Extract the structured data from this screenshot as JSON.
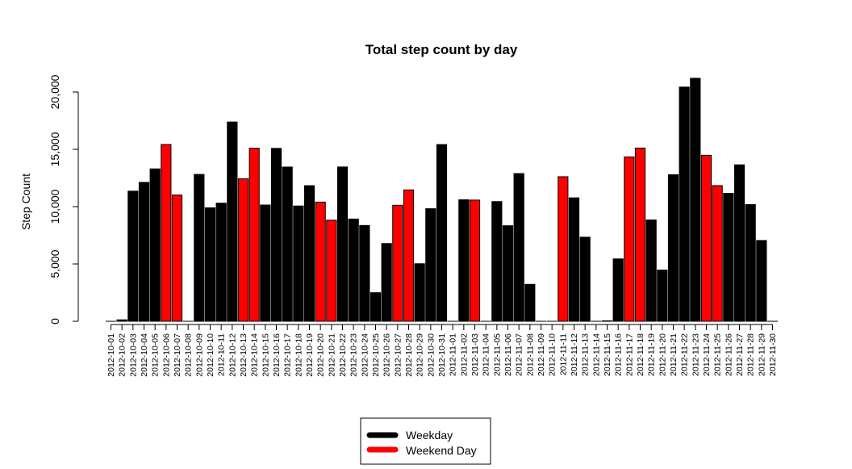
{
  "chart_data": {
    "type": "bar",
    "title": "Total step count by day",
    "xlabel": "",
    "ylabel": "Step Count",
    "ylim": [
      0,
      21194
    ],
    "yticks": [
      0,
      5000,
      10000,
      15000,
      20000
    ],
    "ytick_labels": [
      "0",
      "5,000",
      "10,000",
      "15,000",
      "20,000"
    ],
    "grid": false,
    "legend_position": "bottom-center",
    "series_colors": {
      "Weekday": "#000000",
      "Weekend Day": "#ff0000"
    },
    "legend": [
      {
        "label": "Weekday",
        "color": "#000000"
      },
      {
        "label": "Weekend Day",
        "color": "#ff0000"
      }
    ],
    "categories": [
      "2012-10-01",
      "2012-10-02",
      "2012-10-03",
      "2012-10-04",
      "2012-10-05",
      "2012-10-06",
      "2012-10-07",
      "2012-10-08",
      "2012-10-09",
      "2012-10-10",
      "2012-10-11",
      "2012-10-12",
      "2012-10-13",
      "2012-10-14",
      "2012-10-15",
      "2012-10-16",
      "2012-10-17",
      "2012-10-18",
      "2012-10-19",
      "2012-10-20",
      "2012-10-21",
      "2012-10-22",
      "2012-10-23",
      "2012-10-24",
      "2012-10-25",
      "2012-10-26",
      "2012-10-27",
      "2012-10-28",
      "2012-10-29",
      "2012-10-30",
      "2012-10-31",
      "2012-11-01",
      "2012-11-02",
      "2012-11-03",
      "2012-11-04",
      "2012-11-05",
      "2012-11-06",
      "2012-11-07",
      "2012-11-08",
      "2012-11-09",
      "2012-11-10",
      "2012-11-11",
      "2012-11-12",
      "2012-11-13",
      "2012-11-14",
      "2012-11-15",
      "2012-11-16",
      "2012-11-17",
      "2012-11-18",
      "2012-11-19",
      "2012-11-20",
      "2012-11-21",
      "2012-11-22",
      "2012-11-23",
      "2012-11-24",
      "2012-11-25",
      "2012-11-26",
      "2012-11-27",
      "2012-11-28",
      "2012-11-29",
      "2012-11-30"
    ],
    "values": [
      0,
      126,
      11352,
      12116,
      13294,
      15420,
      11015,
      0,
      12811,
      9900,
      10304,
      17382,
      12426,
      15098,
      10139,
      15084,
      13452,
      10056,
      11829,
      10395,
      8821,
      13460,
      8918,
      8355,
      2492,
      6778,
      10119,
      11458,
      5018,
      9819,
      15414,
      0,
      10600,
      10571,
      0,
      10439,
      8334,
      12883,
      3219,
      0,
      0,
      12608,
      10765,
      7336,
      0,
      41,
      5441,
      14339,
      15110,
      8841,
      4472,
      12787,
      20427,
      21194,
      14478,
      11834,
      11162,
      13646,
      10183,
      7047,
      0
    ],
    "day_type": [
      "Weekday",
      "Weekday",
      "Weekday",
      "Weekday",
      "Weekday",
      "Weekend Day",
      "Weekend Day",
      "Weekday",
      "Weekday",
      "Weekday",
      "Weekday",
      "Weekday",
      "Weekend Day",
      "Weekend Day",
      "Weekday",
      "Weekday",
      "Weekday",
      "Weekday",
      "Weekday",
      "Weekend Day",
      "Weekend Day",
      "Weekday",
      "Weekday",
      "Weekday",
      "Weekday",
      "Weekday",
      "Weekend Day",
      "Weekend Day",
      "Weekday",
      "Weekday",
      "Weekday",
      "Weekday",
      "Weekday",
      "Weekend Day",
      "Weekend Day",
      "Weekday",
      "Weekday",
      "Weekday",
      "Weekday",
      "Weekday",
      "Weekend Day",
      "Weekend Day",
      "Weekday",
      "Weekday",
      "Weekday",
      "Weekday",
      "Weekday",
      "Weekend Day",
      "Weekend Day",
      "Weekday",
      "Weekday",
      "Weekday",
      "Weekday",
      "Weekday",
      "Weekend Day",
      "Weekend Day",
      "Weekday",
      "Weekday",
      "Weekday",
      "Weekday",
      "Weekday"
    ]
  }
}
